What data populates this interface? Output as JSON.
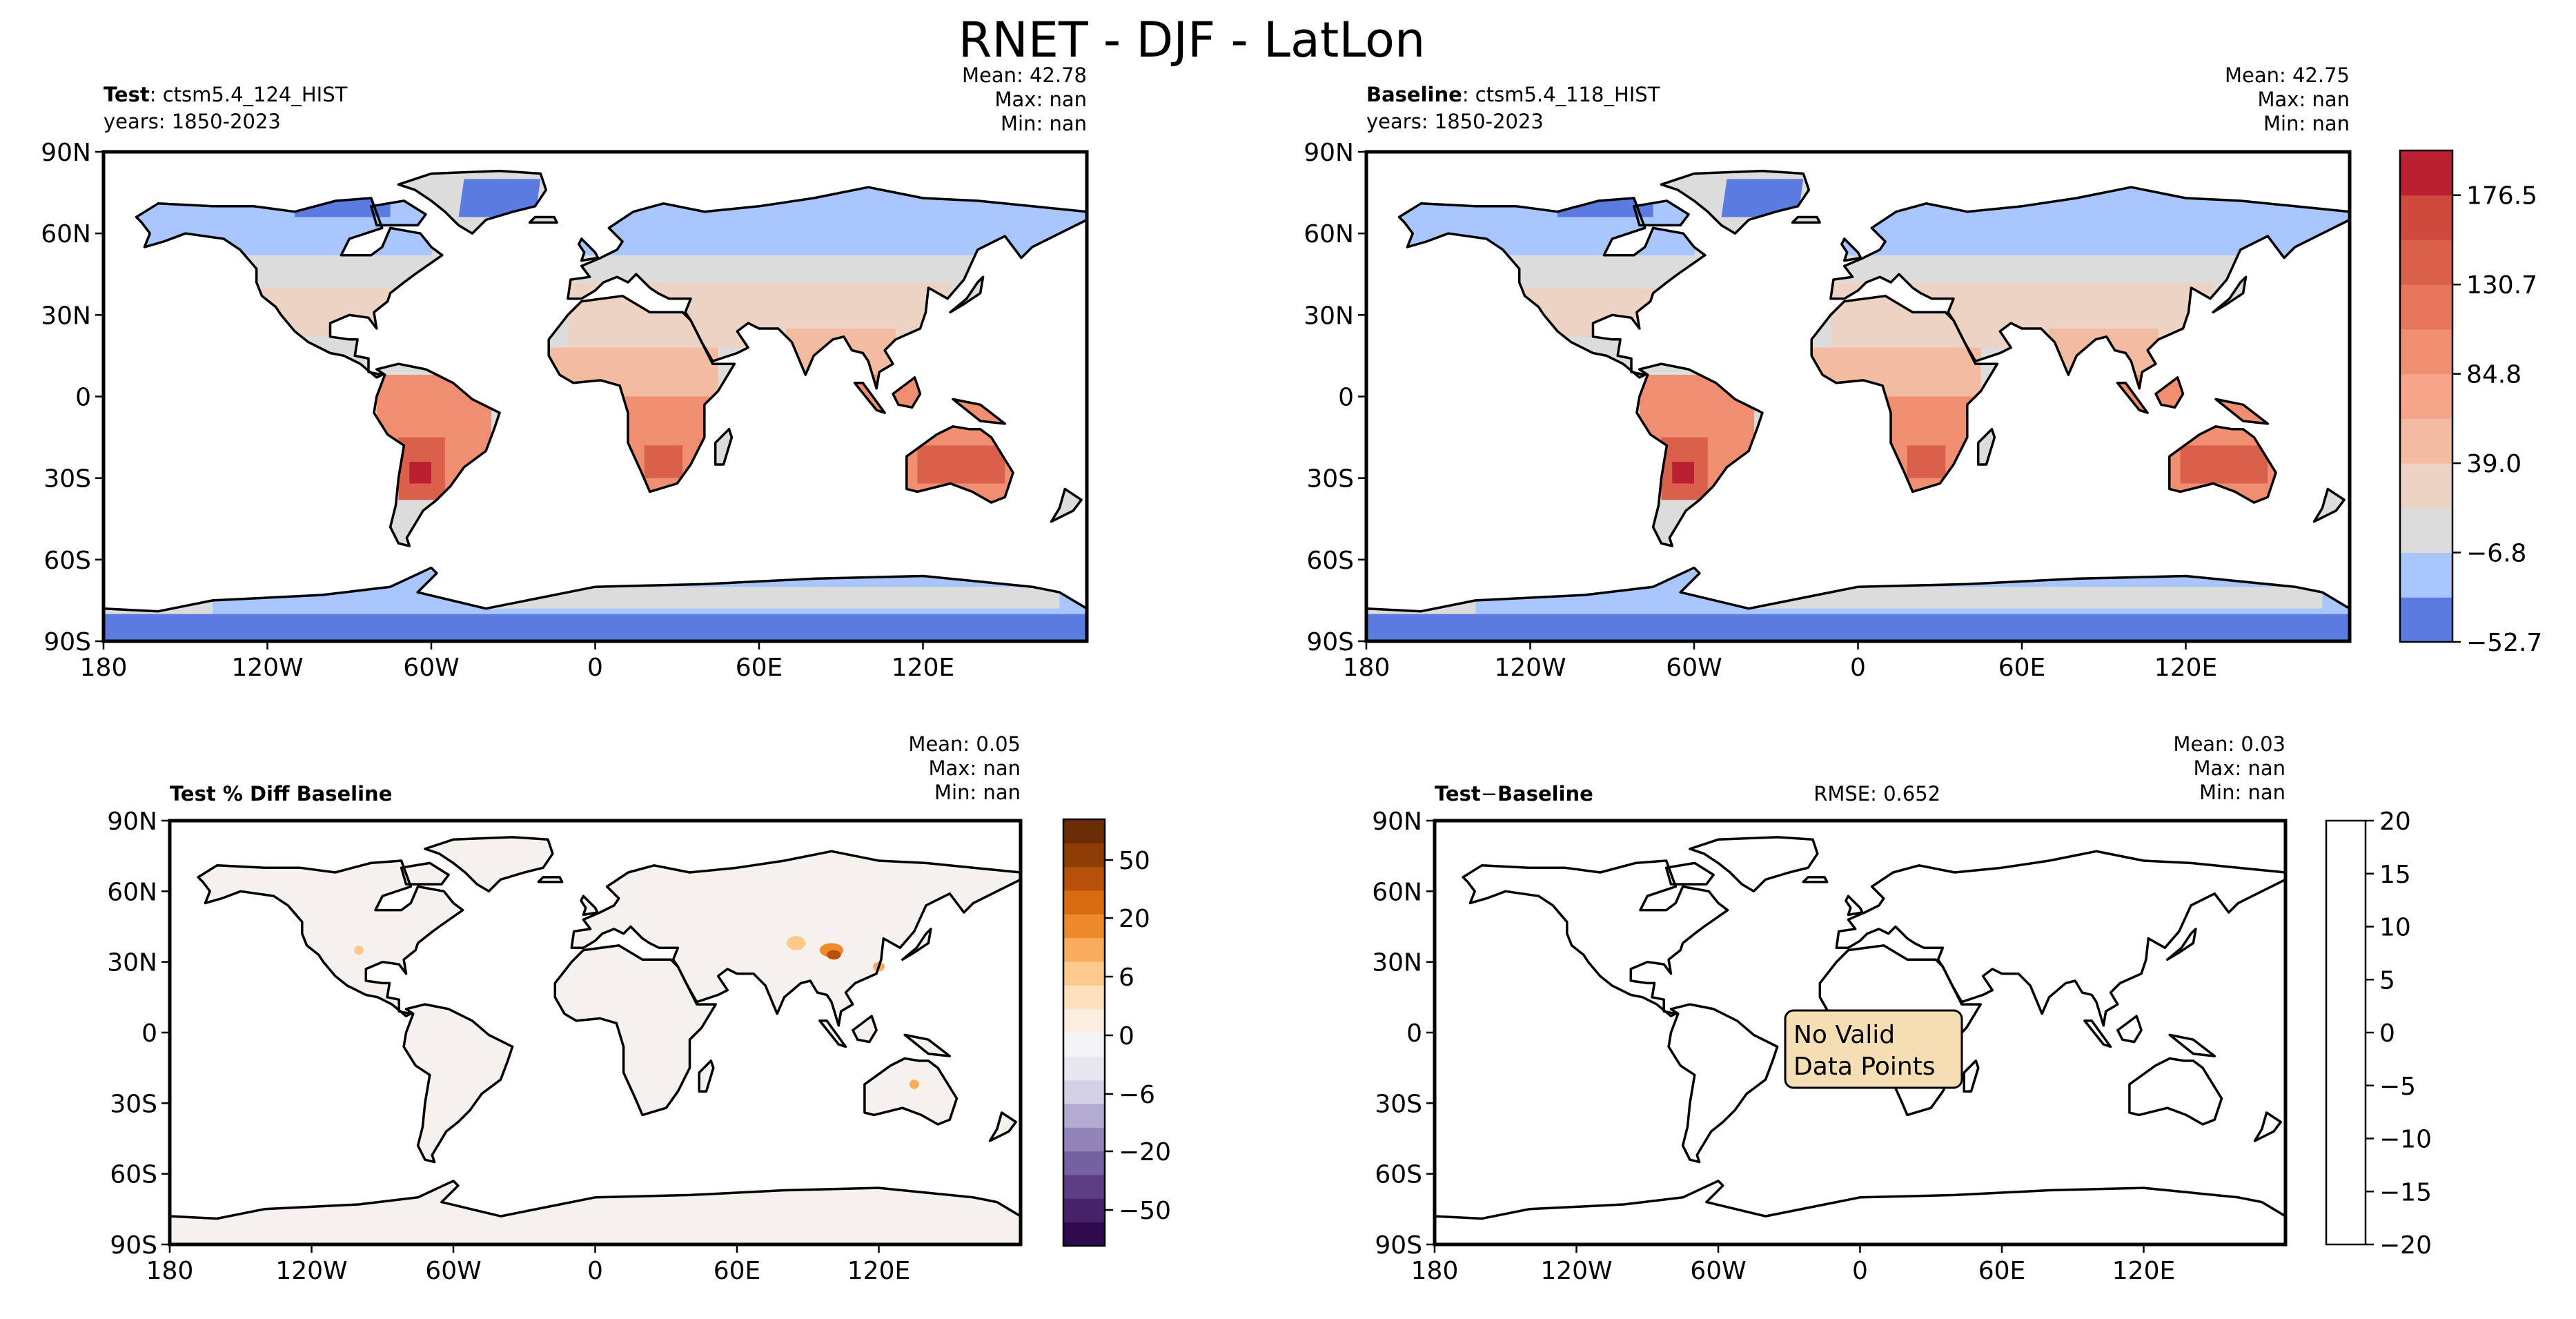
{
  "figure": {
    "title": "RNET - DJF - LatLon"
  },
  "chart_data": [
    {
      "type": "heatmap",
      "panel": "test",
      "title_bold": "Test",
      "title_rest": ": ctsm5.4_124_HIST",
      "years": "years: 1850-2023",
      "stats": {
        "mean": "Mean: 42.78",
        "max": "Max:   nan",
        "min": "Min:   nan"
      },
      "rmse": "",
      "xticks": [
        "180",
        "120W",
        "60W",
        "0",
        "60E",
        "120E"
      ],
      "yticks": [
        "90N",
        "60N",
        "30N",
        "0",
        "30S",
        "60S",
        "90S"
      ],
      "xlim": [
        -180,
        180
      ],
      "ylim": [
        -90,
        90
      ]
    },
    {
      "type": "heatmap",
      "panel": "baseline",
      "title_bold": "Baseline",
      "title_rest": ": ctsm5.4_118_HIST",
      "years": "years: 1850-2023",
      "stats": {
        "mean": "Mean: 42.75",
        "max": "Max:   nan",
        "min": "Min:   nan"
      },
      "rmse": "",
      "xticks": [
        "180",
        "120W",
        "60W",
        "0",
        "60E",
        "120E"
      ],
      "yticks": [
        "90N",
        "60N",
        "30N",
        "0",
        "30S",
        "60S",
        "90S"
      ],
      "xlim": [
        -180,
        180
      ],
      "ylim": [
        -90,
        90
      ]
    },
    {
      "type": "heatmap",
      "panel": "pctdiff",
      "title_bold": "Test % Diff Baseline",
      "title_rest": "",
      "years": "",
      "stats": {
        "mean": "Mean:  0.05",
        "max": "Max:   nan",
        "min": "Min:   nan"
      },
      "rmse": "",
      "xticks": [
        "180",
        "120W",
        "60W",
        "0",
        "60E",
        "120E"
      ],
      "yticks": [
        "90N",
        "60N",
        "30N",
        "0",
        "30S",
        "60S",
        "90S"
      ],
      "xlim": [
        -180,
        180
      ],
      "ylim": [
        -90,
        90
      ]
    },
    {
      "type": "heatmap",
      "panel": "diff",
      "title_bold": "Test",
      "title_minus": "−",
      "title_bold2": "Baseline",
      "title_rest": "",
      "years": "",
      "stats": {
        "mean": "Mean:  0.03",
        "max": "Max:   nan",
        "min": "Min:   nan"
      },
      "rmse": "RMSE: 0.652",
      "no_data_line1": "No Valid",
      "no_data_line2": "Data Points",
      "xticks": [
        "180",
        "120W",
        "60W",
        "0",
        "60E",
        "120E"
      ],
      "yticks": [
        "90N",
        "60N",
        "30N",
        "0",
        "30S",
        "60S",
        "90S"
      ],
      "xlim": [
        -180,
        180
      ],
      "ylim": [
        -90,
        90
      ]
    }
  ],
  "colorbars": {
    "top": {
      "labels": [
        "176.5",
        "130.7",
        "84.8",
        "39.0",
        "−6.8",
        "−52.7"
      ],
      "colors": [
        "#5b7be0",
        "#a9c6fc",
        "#dcdcdc",
        "#ecd3c3",
        "#f3bba0",
        "#f5a58a",
        "#f08e72",
        "#e8765c",
        "#d9604a",
        "#cf4a3c",
        "#bb2030"
      ]
    },
    "pct": {
      "labels": [
        "50",
        "20",
        "6",
        "0",
        "−6",
        "−20",
        "−50"
      ],
      "colors": [
        "#2d0b4e",
        "#45226a",
        "#5c3d86",
        "#7461a1",
        "#9284b9",
        "#b3abd0",
        "#d4d1e6",
        "#e8e7f1",
        "#f4f4f6",
        "#fbefe2",
        "#fde0bd",
        "#fdc98c",
        "#f9ac5c",
        "#ee8a2c",
        "#d96b11",
        "#b7510a",
        "#8e3d07",
        "#6b2d05"
      ]
    },
    "diff": {
      "labels": [
        "20",
        "15",
        "10",
        "5",
        "0",
        "−5",
        "−10",
        "−15",
        "−20"
      ],
      "colors": []
    }
  }
}
